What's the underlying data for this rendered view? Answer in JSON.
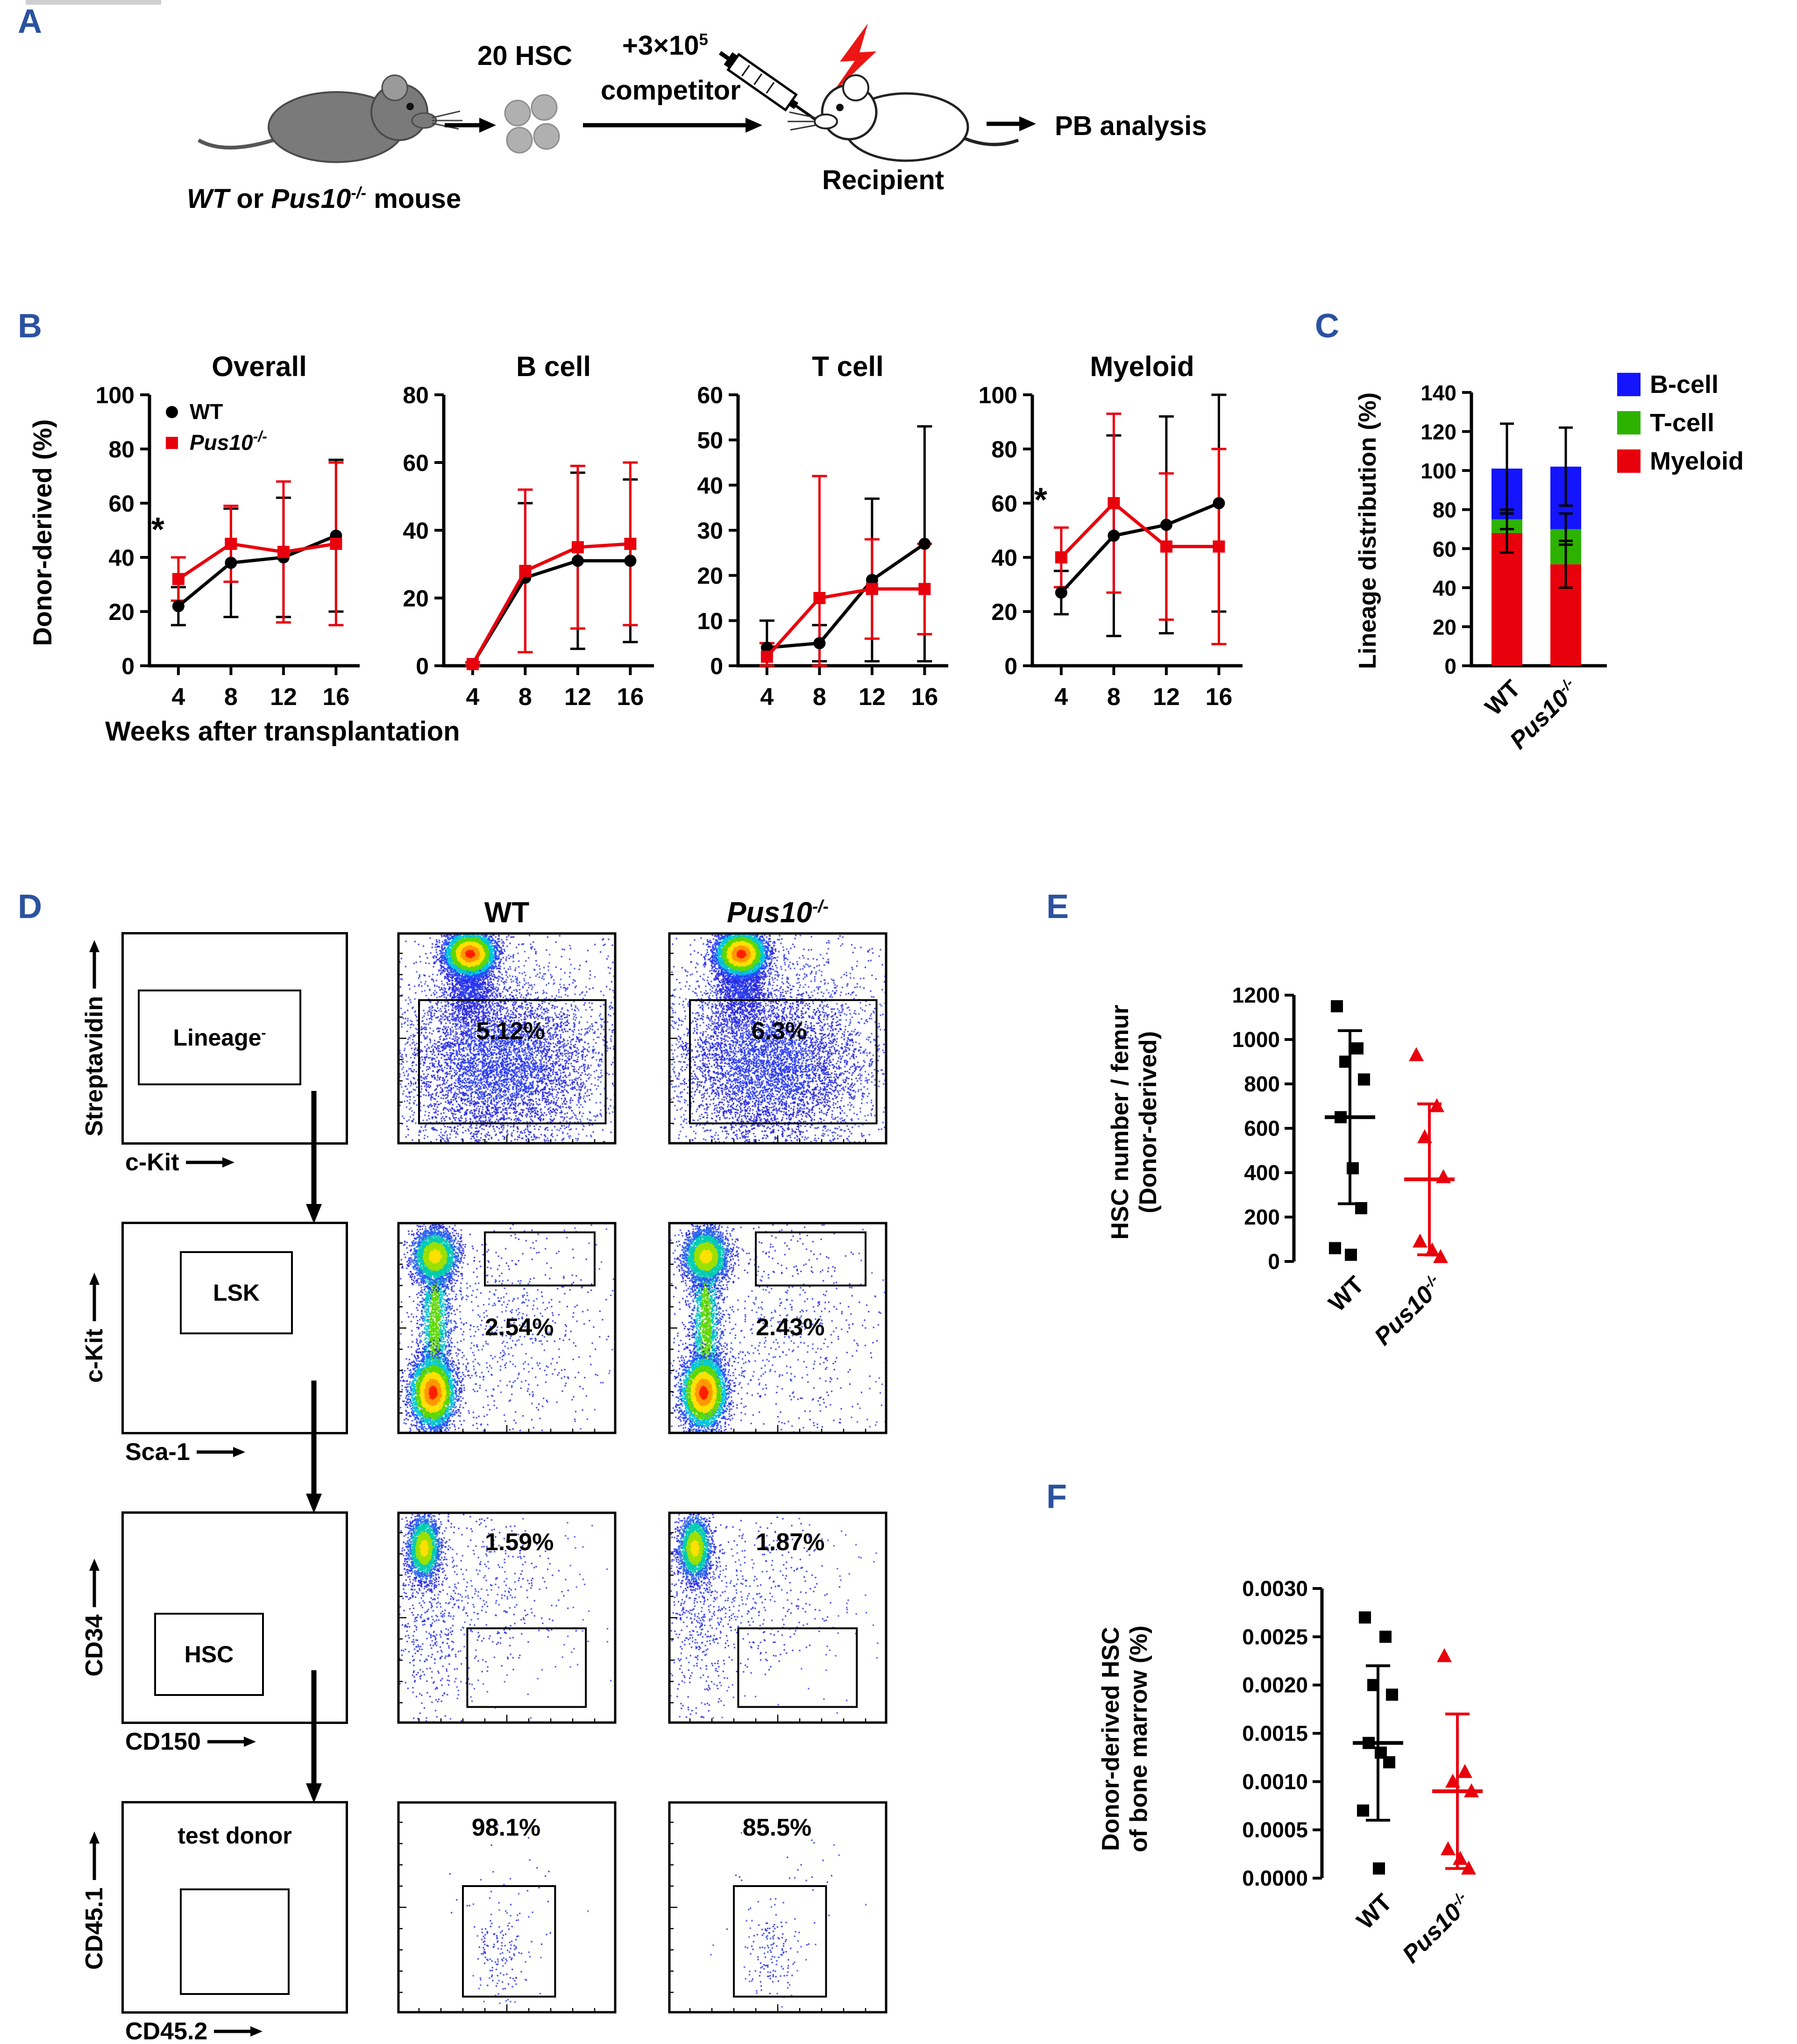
{
  "colors": {
    "panel_label": "#2b52a0",
    "wt": "#000000",
    "ko": "#e8000d",
    "bcell": "#1414ff",
    "tcell": "#2db200",
    "myeloid": "#e8000d"
  },
  "names": {
    "wt": "WT",
    "ko_base": "Pus10",
    "ko_sup": "-/-"
  },
  "panel_a": {
    "label": "A",
    "hsc": "20 HSC",
    "competitor_base": "+3×10",
    "competitor_sup": "5",
    "competitor_word": "competitor",
    "recipient": "Recipient",
    "pb": "PB analysis",
    "donor_wt": "WT",
    "donor_or": " or ",
    "donor_ko": "Pus10",
    "donor_ko_sup": "-/-",
    "donor_rest": " mouse"
  },
  "panel_b": {
    "label": "B",
    "ylabel": "Donor-derived (%)",
    "xlabel": "Weeks after transplantation"
  },
  "panel_c": {
    "label": "C",
    "ylabel": "Lineage distribution (%)"
  },
  "panel_d": {
    "label": "D"
  },
  "panel_e": {
    "label": "E",
    "ylabel_line1": "HSC number / femur",
    "ylabel_line2": "(Donor-derived)"
  },
  "panel_f": {
    "label": "F",
    "ylabel_line1": "Donor-derived HSC",
    "ylabel_line2": "of bone marrow (%)"
  },
  "flow": {
    "col_headers": [
      {
        "label": "WT"
      },
      {
        "label": "Pus10",
        "sup": "-/-"
      }
    ],
    "rows": [
      {
        "gate": {
          "base": "Lineage",
          "sup": "-"
        },
        "yaxis": "Streptavidin",
        "xaxis": "c-Kit",
        "pcts": [
          "5.12%",
          "6.3%"
        ]
      },
      {
        "gate": {
          "base": "LSK"
        },
        "yaxis": "c-Kit",
        "xaxis": "Sca-1",
        "pcts": [
          "2.54%",
          "2.43%"
        ]
      },
      {
        "gate": {
          "base": "HSC"
        },
        "yaxis": "CD34",
        "xaxis": "CD150",
        "pcts": [
          "1.59%",
          "1.87%"
        ]
      },
      {
        "gate": {
          "base": "test donor"
        },
        "yaxis": "CD45.1",
        "xaxis": "CD45.2",
        "pcts": [
          "98.1%",
          "85.5%"
        ]
      }
    ]
  },
  "chart_data": [
    {
      "id": "overall",
      "type": "line",
      "title": "Overall",
      "ylim": [
        0,
        100
      ],
      "ystep": 20,
      "x": [
        4,
        8,
        12,
        16
      ],
      "legend_in": true,
      "series": [
        {
          "base": "WT",
          "marker": "circle",
          "color": "#000000",
          "values": [
            22,
            38,
            40,
            48
          ],
          "err": [
            7,
            20,
            22,
            28
          ]
        },
        {
          "base": "Pus10",
          "sup": "-/-",
          "italic": true,
          "marker": "square",
          "color": "#e8000d",
          "values": [
            32,
            45,
            42,
            45
          ],
          "err": [
            8,
            14,
            26,
            30
          ]
        }
      ],
      "star": {
        "xi": 0,
        "y": 46,
        "text": "*"
      }
    },
    {
      "id": "bcell",
      "type": "line",
      "title": "B cell",
      "ylim": [
        0,
        80
      ],
      "ystep": 20,
      "x": [
        4,
        8,
        12,
        16
      ],
      "series": [
        {
          "base": "WT",
          "marker": "circle",
          "color": "#000000",
          "values": [
            0.5,
            26,
            31,
            31
          ],
          "err": [
            0.5,
            22,
            26,
            24
          ]
        },
        {
          "base": "Pus10",
          "sup": "-/-",
          "italic": true,
          "marker": "square",
          "color": "#e8000d",
          "values": [
            0.5,
            28,
            35,
            36
          ],
          "err": [
            0.5,
            24,
            24,
            24
          ]
        }
      ]
    },
    {
      "id": "tcell",
      "type": "line",
      "title": "T cell",
      "ylim": [
        0,
        60
      ],
      "ystep": 10,
      "x": [
        4,
        8,
        12,
        16
      ],
      "series": [
        {
          "base": "WT",
          "marker": "circle",
          "color": "#000000",
          "values": [
            4,
            5,
            19,
            27
          ],
          "err": [
            6,
            4,
            18,
            26
          ]
        },
        {
          "base": "Pus10",
          "sup": "-/-",
          "italic": true,
          "marker": "square",
          "color": "#e8000d",
          "values": [
            2,
            15,
            17,
            17
          ],
          "err": [
            3,
            27,
            11,
            10
          ]
        }
      ]
    },
    {
      "id": "myeloid",
      "type": "line",
      "title": "Myeloid",
      "ylim": [
        0,
        100
      ],
      "ystep": 20,
      "x": [
        4,
        8,
        12,
        16
      ],
      "series": [
        {
          "base": "WT",
          "marker": "circle",
          "color": "#000000",
          "values": [
            27,
            48,
            52,
            60
          ],
          "err": [
            8,
            37,
            40,
            40
          ]
        },
        {
          "base": "Pus10",
          "sup": "-/-",
          "italic": true,
          "marker": "square",
          "color": "#e8000d",
          "values": [
            40,
            60,
            44,
            44
          ],
          "err": [
            11,
            33,
            27,
            36
          ]
        }
      ],
      "star": {
        "xi": 0,
        "y": 57,
        "text": "*"
      }
    },
    {
      "id": "lineage",
      "type": "stacked_bar",
      "ylim": [
        0,
        140
      ],
      "ystep": 20,
      "categories": [
        {
          "base": "WT"
        },
        {
          "base": "Pus10",
          "sup": "-/-"
        }
      ],
      "series": [
        {
          "name": "Myeloid",
          "color": "#e8000d",
          "values": [
            68,
            52
          ],
          "err": [
            10,
            12
          ]
        },
        {
          "name": "T-cell",
          "color": "#2db200",
          "values": [
            7,
            18
          ],
          "err": [
            5,
            8
          ]
        },
        {
          "name": "B-cell",
          "color": "#1414ff",
          "values": [
            26,
            32
          ],
          "err": [
            23,
            20
          ]
        }
      ],
      "legend": [
        {
          "label": "B-cell",
          "color": "#1414ff"
        },
        {
          "label": "T-cell",
          "color": "#2db200"
        },
        {
          "label": "Myeloid",
          "color": "#e8000d"
        }
      ]
    },
    {
      "id": "hsc_number",
      "type": "scatter",
      "ylim": [
        0,
        1200
      ],
      "ystep": 200,
      "ydecimals": 0,
      "groups": [
        {
          "base": "WT",
          "marker": "square",
          "color": "#000000",
          "points": [
            1150,
            960,
            900,
            820,
            650,
            420,
            240,
            60,
            30
          ],
          "mean": 650,
          "sd": 390
        },
        {
          "base": "Pus10",
          "sup": "-/-",
          "italic": true,
          "marker": "triangle",
          "color": "#e8000d",
          "points": [
            930,
            700,
            560,
            380,
            90,
            50,
            20
          ],
          "mean": 370,
          "sd": 340
        }
      ]
    },
    {
      "id": "hsc_pct",
      "type": "scatter",
      "ylim": [
        0,
        0.003
      ],
      "ystep": 0.0005,
      "ydecimals": 4,
      "groups": [
        {
          "base": "WT",
          "marker": "square",
          "color": "#000000",
          "points": [
            0.0027,
            0.0025,
            0.002,
            0.0019,
            0.0014,
            0.0013,
            0.0012,
            0.0007,
            0.0001
          ],
          "mean": 0.0014,
          "sd": 0.0008
        },
        {
          "base": "Pus10",
          "sup": "-/-",
          "italic": true,
          "marker": "triangle",
          "color": "#e8000d",
          "points": [
            0.0023,
            0.0011,
            0.001,
            0.0009,
            0.0003,
            0.0002,
            0.0001
          ],
          "mean": 0.0009,
          "sd": 0.0008
        }
      ]
    }
  ]
}
